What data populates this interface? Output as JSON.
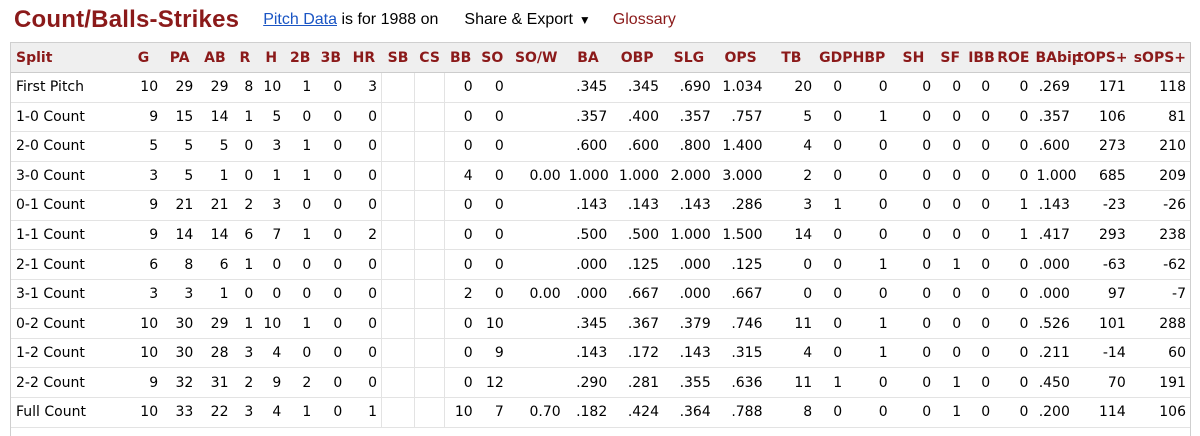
{
  "header": {
    "title": "Count/Balls-Strikes",
    "pitch_link": "Pitch Data",
    "pitch_rest": " is for 1988 on",
    "share_label": "Share & Export",
    "share_caret": "▼",
    "glossary": "Glossary"
  },
  "table": {
    "columns": [
      "Split",
      "G",
      "PA",
      "AB",
      "R",
      "H",
      "2B",
      "3B",
      "HR",
      "SB",
      "CS",
      "BB",
      "SO",
      "SO/W",
      "BA",
      "OBP",
      "SLG",
      "OPS",
      "TB",
      "GDP",
      "HBP",
      "SH",
      "SF",
      "IBB",
      "ROE",
      "BAbip",
      "tOPS+",
      "sOPS+"
    ],
    "rows": [
      [
        "First Pitch",
        "10",
        "29",
        "29",
        "8",
        "10",
        "1",
        "0",
        "3",
        "",
        "",
        "0",
        "0",
        "",
        ".345",
        ".345",
        ".690",
        "1.034",
        "20",
        "0",
        "0",
        "0",
        "0",
        "0",
        "0",
        ".269",
        "171",
        "118"
      ],
      [
        "1-0 Count",
        "9",
        "15",
        "14",
        "1",
        "5",
        "0",
        "0",
        "0",
        "",
        "",
        "0",
        "0",
        "",
        ".357",
        ".400",
        ".357",
        ".757",
        "5",
        "0",
        "1",
        "0",
        "0",
        "0",
        "0",
        ".357",
        "106",
        "81"
      ],
      [
        "2-0 Count",
        "5",
        "5",
        "5",
        "0",
        "3",
        "1",
        "0",
        "0",
        "",
        "",
        "0",
        "0",
        "",
        ".600",
        ".600",
        ".800",
        "1.400",
        "4",
        "0",
        "0",
        "0",
        "0",
        "0",
        "0",
        ".600",
        "273",
        "210"
      ],
      [
        "3-0 Count",
        "3",
        "5",
        "1",
        "0",
        "1",
        "1",
        "0",
        "0",
        "",
        "",
        "4",
        "0",
        "0.00",
        "1.000",
        "1.000",
        "2.000",
        "3.000",
        "2",
        "0",
        "0",
        "0",
        "0",
        "0",
        "0",
        "1.000",
        "685",
        "209"
      ],
      [
        "0-1 Count",
        "9",
        "21",
        "21",
        "2",
        "3",
        "0",
        "0",
        "0",
        "",
        "",
        "0",
        "0",
        "",
        ".143",
        ".143",
        ".143",
        ".286",
        "3",
        "1",
        "0",
        "0",
        "0",
        "0",
        "1",
        ".143",
        "-23",
        "-26"
      ],
      [
        "1-1 Count",
        "9",
        "14",
        "14",
        "6",
        "7",
        "1",
        "0",
        "2",
        "",
        "",
        "0",
        "0",
        "",
        ".500",
        ".500",
        "1.000",
        "1.500",
        "14",
        "0",
        "0",
        "0",
        "0",
        "0",
        "1",
        ".417",
        "293",
        "238"
      ],
      [
        "2-1 Count",
        "6",
        "8",
        "6",
        "1",
        "0",
        "0",
        "0",
        "0",
        "",
        "",
        "0",
        "0",
        "",
        ".000",
        ".125",
        ".000",
        ".125",
        "0",
        "0",
        "1",
        "0",
        "1",
        "0",
        "0",
        ".000",
        "-63",
        "-62"
      ],
      [
        "3-1 Count",
        "3",
        "3",
        "1",
        "0",
        "0",
        "0",
        "0",
        "0",
        "",
        "",
        "2",
        "0",
        "0.00",
        ".000",
        ".667",
        ".000",
        ".667",
        "0",
        "0",
        "0",
        "0",
        "0",
        "0",
        "0",
        ".000",
        "97",
        "-7"
      ],
      [
        "0-2 Count",
        "10",
        "30",
        "29",
        "1",
        "10",
        "1",
        "0",
        "0",
        "",
        "",
        "0",
        "10",
        "",
        ".345",
        ".367",
        ".379",
        ".746",
        "11",
        "0",
        "1",
        "0",
        "0",
        "0",
        "0",
        ".526",
        "101",
        "288"
      ],
      [
        "1-2 Count",
        "10",
        "30",
        "28",
        "3",
        "4",
        "0",
        "0",
        "0",
        "",
        "",
        "0",
        "9",
        "",
        ".143",
        ".172",
        ".143",
        ".315",
        "4",
        "0",
        "1",
        "0",
        "0",
        "0",
        "0",
        ".211",
        "-14",
        "60"
      ],
      [
        "2-2 Count",
        "9",
        "32",
        "31",
        "2",
        "9",
        "2",
        "0",
        "0",
        "",
        "",
        "0",
        "12",
        "",
        ".290",
        ".281",
        ".355",
        ".636",
        "11",
        "1",
        "0",
        "0",
        "1",
        "0",
        "0",
        ".450",
        "70",
        "191"
      ],
      [
        "Full Count",
        "10",
        "33",
        "22",
        "3",
        "4",
        "1",
        "0",
        "1",
        "",
        "",
        "10",
        "7",
        "0.70",
        ".182",
        ".424",
        ".364",
        ".788",
        "8",
        "0",
        "0",
        "0",
        "1",
        "0",
        "0",
        ".200",
        "114",
        "106"
      ]
    ]
  }
}
